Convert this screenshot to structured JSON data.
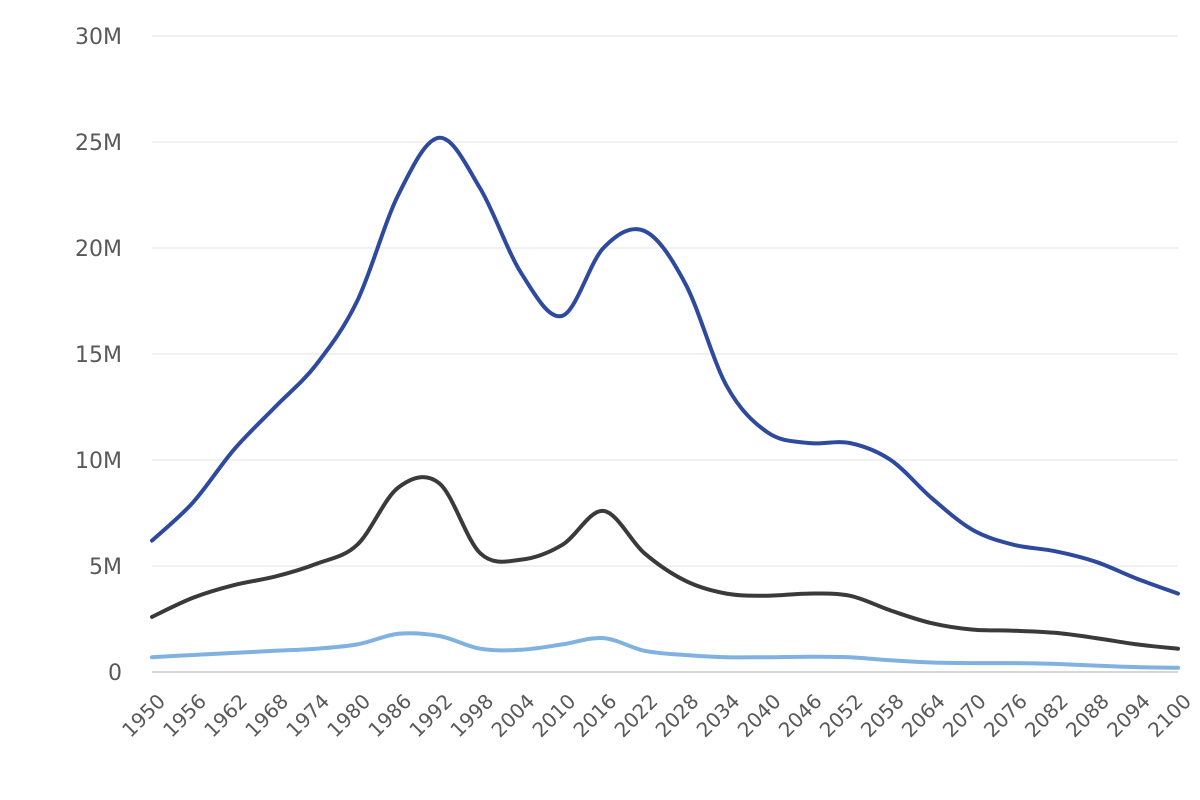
{
  "chart_data": {
    "type": "line",
    "title": "",
    "xlabel": "",
    "ylabel": "",
    "ylim": [
      0,
      30000000
    ],
    "grid": true,
    "legend": "none",
    "y_ticks": [
      {
        "value": 0,
        "label": "0"
      },
      {
        "value": 5000000,
        "label": "5M"
      },
      {
        "value": 10000000,
        "label": "10M"
      },
      {
        "value": 15000000,
        "label": "15M"
      },
      {
        "value": 20000000,
        "label": "20M"
      },
      {
        "value": 25000000,
        "label": "25M"
      },
      {
        "value": 30000000,
        "label": "30M"
      }
    ],
    "x_ticks": [
      "1950",
      "1956",
      "1962",
      "1968",
      "1974",
      "1980",
      "1986",
      "1992",
      "1998",
      "2004",
      "2010",
      "2016",
      "2022",
      "2028",
      "2034",
      "2040",
      "2046",
      "2052",
      "2058",
      "2064",
      "2070",
      "2076",
      "2082",
      "2088",
      "2094",
      "2100"
    ],
    "x": [
      1950,
      1956,
      1962,
      1968,
      1974,
      1980,
      1986,
      1992,
      1998,
      2004,
      2010,
      2016,
      2022,
      2028,
      2034,
      2040,
      2046,
      2052,
      2058,
      2064,
      2070,
      2076,
      2082,
      2088,
      2094,
      2100
    ],
    "series": [
      {
        "color": "#2e4a9e",
        "values": [
          6200000,
          8000000,
          10500000,
          12500000,
          14500000,
          17500000,
          22500000,
          25200000,
          22800000,
          18800000,
          16800000,
          20000000,
          20800000,
          18300000,
          13500000,
          11300000,
          10800000,
          10800000,
          10000000,
          8200000,
          6700000,
          6000000,
          5700000,
          5200000,
          4400000,
          3700000
        ]
      },
      {
        "color": "#3a3a3a",
        "values": [
          2600000,
          3500000,
          4100000,
          4500000,
          5100000,
          6000000,
          8700000,
          8900000,
          5600000,
          5300000,
          6000000,
          7600000,
          5600000,
          4300000,
          3700000,
          3600000,
          3700000,
          3600000,
          2900000,
          2300000,
          2000000,
          1950000,
          1850000,
          1600000,
          1300000,
          1100000
        ]
      },
      {
        "color": "#7fb2e0",
        "values": [
          700000,
          800000,
          900000,
          1000000,
          1100000,
          1300000,
          1800000,
          1700000,
          1100000,
          1050000,
          1300000,
          1600000,
          1000000,
          800000,
          700000,
          700000,
          720000,
          700000,
          550000,
          450000,
          420000,
          420000,
          380000,
          300000,
          230000,
          200000
        ]
      }
    ]
  }
}
